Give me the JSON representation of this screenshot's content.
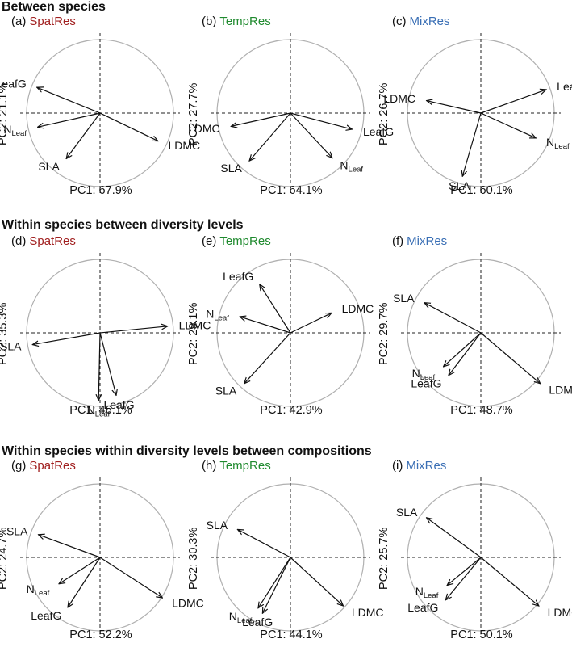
{
  "sections": [
    {
      "title": "Between species"
    },
    {
      "title": "Within species between diversity levels"
    },
    {
      "title": "Within species within diversity levels between compositions"
    }
  ],
  "colors": {
    "SpatRes": "#a11f1f",
    "TempRes": "#1f8a2e",
    "MixRes": "#3a6fb5",
    "circle": "#b0b0b0",
    "arrow": "#111111"
  },
  "chart_data": [
    {
      "type": "biplot",
      "tag": "(a)",
      "treatment": "SpatRes",
      "xlabel": "PC1: 67.9%",
      "ylabel": "PC2: 21.1%",
      "xlim": [
        -1,
        1
      ],
      "ylim": [
        -1,
        1
      ],
      "loadings": [
        {
          "label": "LeafG",
          "x": -0.86,
          "y": 0.35
        },
        {
          "label": "N",
          "sub": "Leaf",
          "x": -0.85,
          "y": -0.19
        },
        {
          "label": "SLA",
          "x": -0.46,
          "y": -0.62
        },
        {
          "label": "LDMC",
          "x": 0.79,
          "y": -0.38
        }
      ]
    },
    {
      "type": "biplot",
      "tag": "(b)",
      "treatment": "TempRes",
      "xlabel": "PC1: 64.1%",
      "ylabel": "PC2: 27.7%",
      "xlim": [
        -1,
        1
      ],
      "ylim": [
        -1,
        1
      ],
      "loadings": [
        {
          "label": "LDMC",
          "x": -0.81,
          "y": -0.18
        },
        {
          "label": "SLA",
          "x": -0.56,
          "y": -0.65
        },
        {
          "label": "N",
          "sub": "Leaf",
          "x": 0.57,
          "y": -0.61
        },
        {
          "label": "LeafG",
          "x": 0.84,
          "y": -0.22
        }
      ]
    },
    {
      "type": "biplot",
      "tag": "(c)",
      "treatment": "MixRes",
      "xlabel": "PC1: 60.1%",
      "ylabel": "PC2: 26.7%",
      "xlim": [
        -1,
        1
      ],
      "ylim": [
        -1,
        1
      ],
      "loadings": [
        {
          "label": "LDMC",
          "x": -0.74,
          "y": 0.17
        },
        {
          "label": "LeafG",
          "x": 0.89,
          "y": 0.32
        },
        {
          "label": "N",
          "sub": "Leaf",
          "x": 0.75,
          "y": -0.34
        },
        {
          "label": "SLA",
          "x": -0.25,
          "y": -0.86
        }
      ]
    },
    {
      "type": "biplot",
      "tag": "(d)",
      "treatment": "SpatRes",
      "xlabel": "PC1: 46.1%",
      "ylabel": "PC2: 35.3%",
      "xlim": [
        -1,
        1
      ],
      "ylim": [
        -1,
        1
      ],
      "loadings": [
        {
          "label": "LDMC",
          "x": 0.92,
          "y": 0.09
        },
        {
          "label": "SLA",
          "x": -0.92,
          "y": -0.16
        },
        {
          "label": "N",
          "sub": "Leaf",
          "x": -0.02,
          "y": -0.92
        },
        {
          "label": "LeafG",
          "x": 0.22,
          "y": -0.85
        }
      ]
    },
    {
      "type": "biplot",
      "tag": "(e)",
      "treatment": "TempRes",
      "xlabel": "PC1: 42.9%",
      "ylabel": "PC2: 29.1%",
      "xlim": [
        -1,
        1
      ],
      "ylim": [
        -1,
        1
      ],
      "loadings": [
        {
          "label": "LeafG",
          "x": -0.42,
          "y": 0.66
        },
        {
          "label": "N",
          "sub": "Leaf",
          "x": -0.69,
          "y": 0.22
        },
        {
          "label": "LDMC",
          "x": 0.56,
          "y": 0.27
        },
        {
          "label": "SLA",
          "x": -0.63,
          "y": -0.69
        }
      ]
    },
    {
      "type": "biplot",
      "tag": "(f)",
      "treatment": "MixRes",
      "xlabel": "PC1: 48.7%",
      "ylabel": "PC2: 29.7%",
      "xlim": [
        -1,
        1
      ],
      "ylim": [
        -1,
        1
      ],
      "loadings": [
        {
          "label": "SLA",
          "x": -0.77,
          "y": 0.41
        },
        {
          "label": "N",
          "sub": "Leaf",
          "x": -0.51,
          "y": -0.46
        },
        {
          "label": "LeafG",
          "x": -0.44,
          "y": -0.58
        },
        {
          "label": "LDMC",
          "x": 0.81,
          "y": -0.69
        }
      ]
    },
    {
      "type": "biplot",
      "tag": "(g)",
      "treatment": "SpatRes",
      "xlabel": "PC1: 52.2%",
      "ylabel": "PC2: 24.7%",
      "xlim": [
        -1,
        1
      ],
      "ylim": [
        -1,
        1
      ],
      "loadings": [
        {
          "label": "SLA",
          "x": -0.84,
          "y": 0.31
        },
        {
          "label": "N",
          "sub": "Leaf",
          "x": -0.56,
          "y": -0.36
        },
        {
          "label": "LeafG",
          "x": -0.44,
          "y": -0.68
        },
        {
          "label": "LDMC",
          "x": 0.85,
          "y": -0.55
        }
      ]
    },
    {
      "type": "biplot",
      "tag": "(h)",
      "treatment": "TempRes",
      "xlabel": "PC1: 44.1%",
      "ylabel": "PC2: 30.3%",
      "xlim": [
        -1,
        1
      ],
      "ylim": [
        -1,
        1
      ],
      "loadings": [
        {
          "label": "SLA",
          "x": -0.72,
          "y": 0.38
        },
        {
          "label": "N",
          "sub": "Leaf",
          "x": -0.44,
          "y": -0.69
        },
        {
          "label": "LeafG",
          "x": -0.38,
          "y": -0.76
        },
        {
          "label": "LDMC",
          "x": 0.72,
          "y": -0.66
        }
      ]
    },
    {
      "type": "biplot",
      "tag": "(i)",
      "treatment": "MixRes",
      "xlabel": "PC1: 50.1%",
      "ylabel": "PC2: 25.7%",
      "xlim": [
        -1,
        1
      ],
      "ylim": [
        -1,
        1
      ],
      "loadings": [
        {
          "label": "SLA",
          "x": -0.74,
          "y": 0.54
        },
        {
          "label": "N",
          "sub": "Leaf",
          "x": -0.46,
          "y": -0.38
        },
        {
          "label": "LeafG",
          "x": -0.48,
          "y": -0.58
        },
        {
          "label": "LDMC",
          "x": 0.79,
          "y": -0.66
        }
      ]
    }
  ]
}
